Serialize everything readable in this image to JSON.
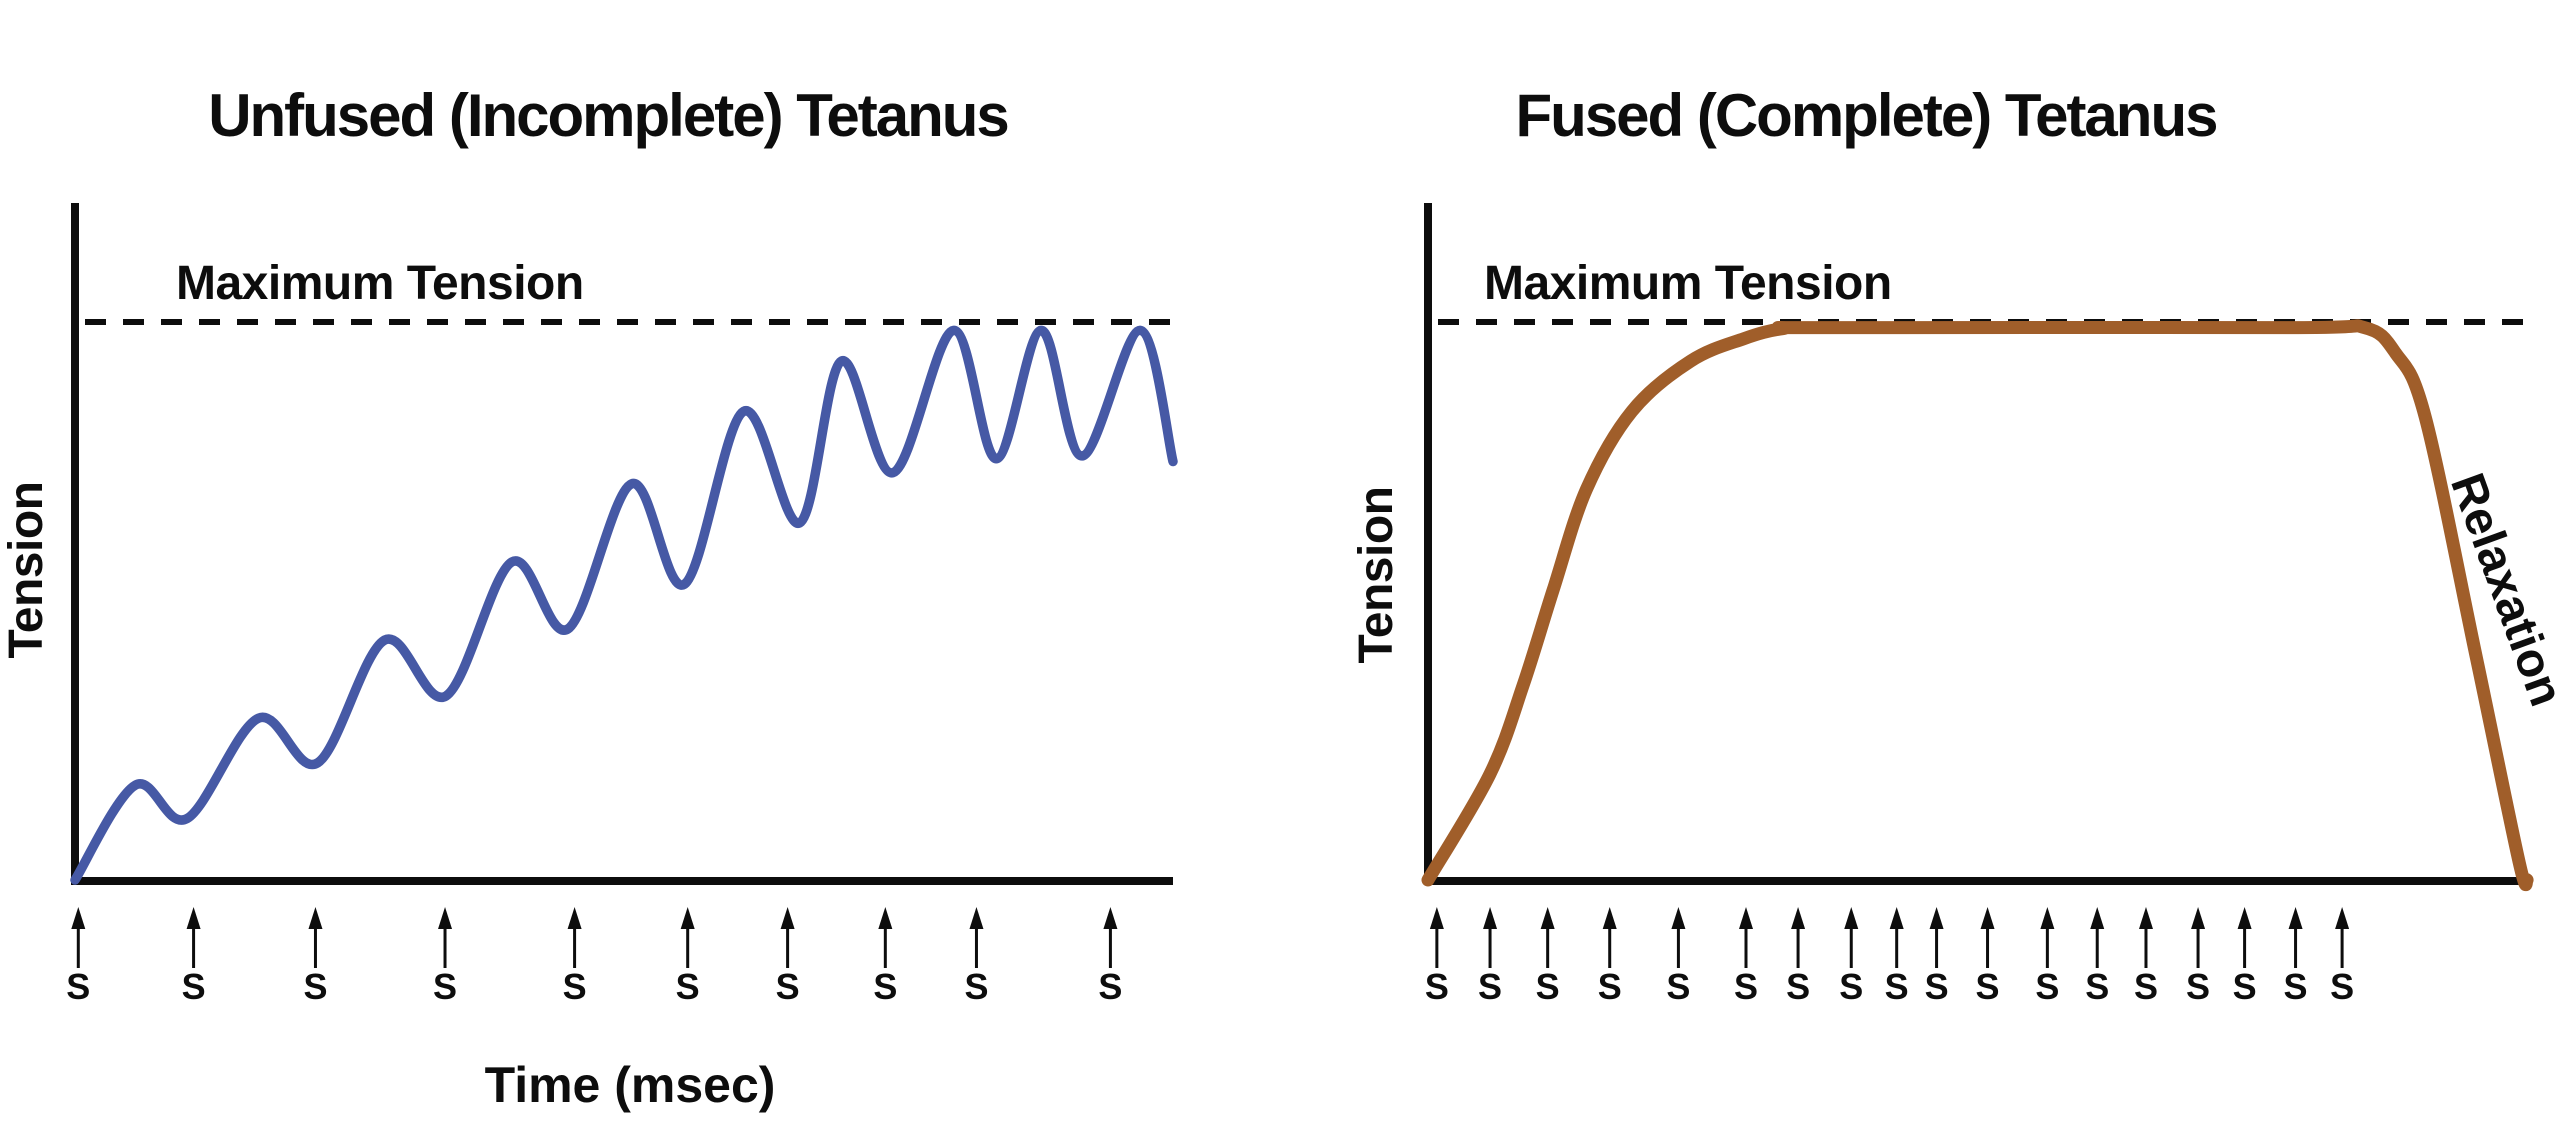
{
  "figure": {
    "background": "#ffffff",
    "text_color": "#0d0d0d",
    "axis_color": "#0d0d0d",
    "dashed_line_color": "#0d0d0d"
  },
  "left_chart": {
    "title": "Unfused (Incomplete) Tetanus",
    "max_tension_label": "Maximum Tension",
    "y_axis_label": "Tension",
    "x_axis_label": "Time (msec)",
    "stimulus_letter": "S",
    "curve_color": "#4659A5"
  },
  "right_chart": {
    "title": "Fused (Complete) Tetanus",
    "max_tension_label": "Maximum Tension",
    "y_axis_label": "Tension",
    "relaxation_label": "Relaxation",
    "stimulus_letter": "S",
    "curve_color": "#A05E2A"
  },
  "chart_data": [
    {
      "type": "line",
      "title": "Unfused (Incomplete) Tetanus",
      "xlabel": "Time (msec)",
      "ylabel": "Tension",
      "xlim": [
        0,
        100
      ],
      "ylim": [
        0,
        1.15
      ],
      "grid": false,
      "max_tension_level": 1.0,
      "annotations": [
        "Maximum Tension"
      ],
      "series": [
        {
          "name": "unfused-tetanus-tension",
          "color": "#4659A5",
          "x_time": [
            0,
            5.5,
            10.2,
            16.7,
            22.1,
            28.2,
            33.8,
            39.8,
            44.9,
            50.7,
            55.5,
            60.9,
            66,
            69.8,
            74.5,
            80,
            83.9,
            88,
            91.7,
            97,
            100
          ],
          "y_tension": [
            0,
            0.17,
            0.11,
            0.29,
            0.21,
            0.43,
            0.33,
            0.57,
            0.45,
            0.71,
            0.53,
            0.84,
            0.64,
            0.93,
            0.73,
            0.985,
            0.755,
            0.985,
            0.76,
            0.985,
            0.75
          ]
        }
      ],
      "stimulus_marker": "S",
      "stimuli_times": [
        0.3,
        10.8,
        21.9,
        33.7,
        45.5,
        55.8,
        64.9,
        73.8,
        82.1,
        94.3
      ]
    },
    {
      "type": "line",
      "title": "Fused (Complete) Tetanus",
      "xlabel": "",
      "ylabel": "Tension",
      "xlim": [
        0,
        100
      ],
      "ylim": [
        0,
        1.15
      ],
      "grid": false,
      "max_tension_level": 1.0,
      "annotations": [
        "Maximum Tension",
        "Relaxation"
      ],
      "series": [
        {
          "name": "fused-tetanus-tension",
          "color": "#A05E2A",
          "x_time": [
            0,
            5.6,
            8.6,
            11.3,
            14.3,
            18.4,
            23.7,
            28.5,
            32,
            36,
            78,
            84.5,
            87.3,
            90,
            94.6,
            98.5,
            99.2
          ],
          "y_tension": [
            0,
            0.19,
            0.35,
            0.52,
            0.7,
            0.84,
            0.93,
            0.97,
            0.988,
            0.99,
            0.99,
            0.99,
            0.945,
            0.83,
            0.4,
            0.03,
            0
          ]
        }
      ],
      "stimulus_marker": "S",
      "stimuli_times": [
        0.8,
        5.6,
        10.8,
        16.4,
        22.6,
        28.7,
        33.4,
        38.2,
        42.3,
        45.9,
        50.5,
        55.9,
        60.4,
        64.8,
        69.5,
        73.7,
        78.3,
        82.5
      ]
    }
  ]
}
